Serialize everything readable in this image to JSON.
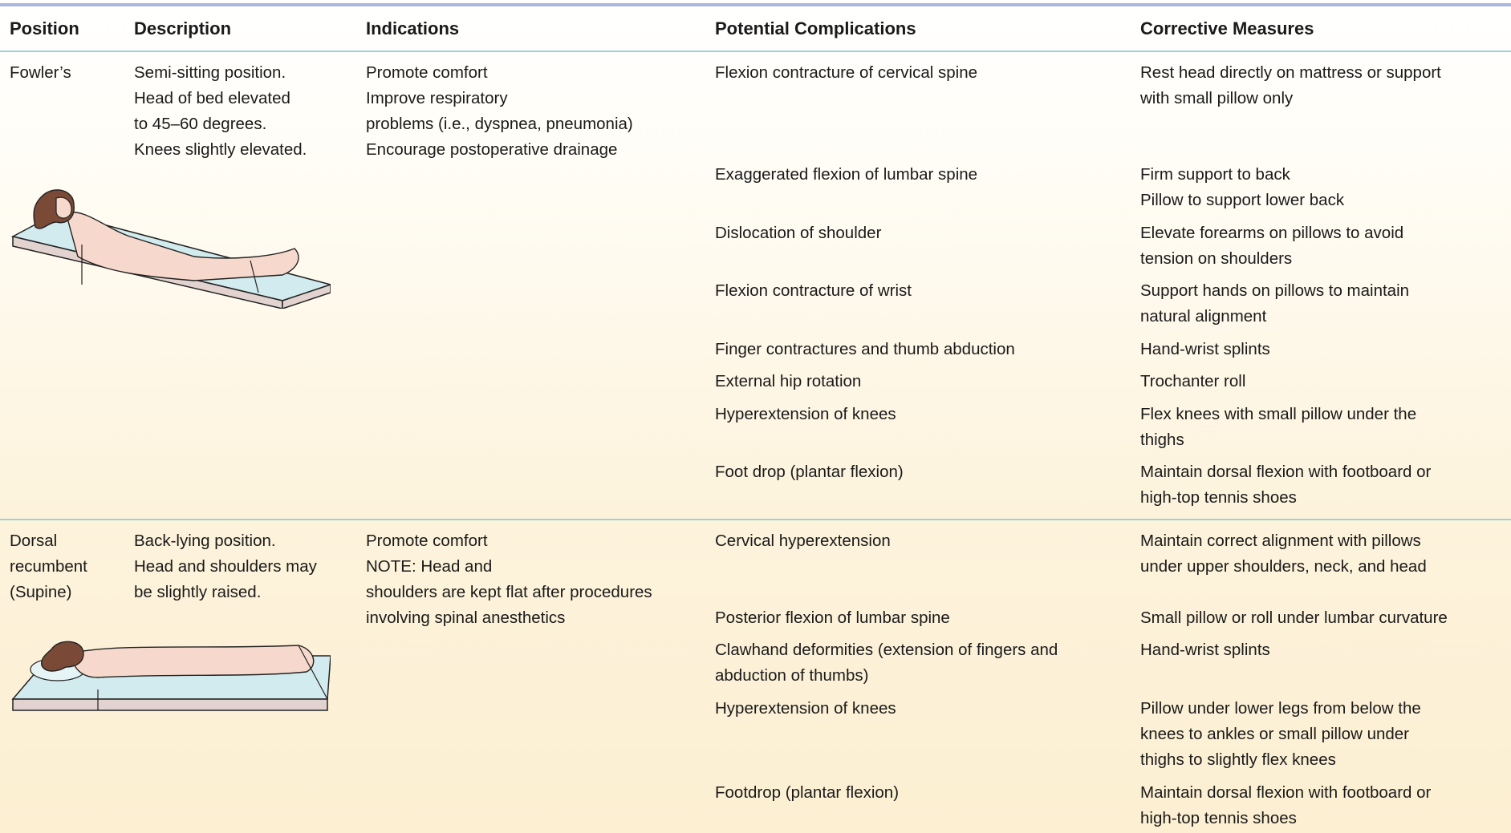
{
  "table": {
    "columns": [
      "Position",
      "Description",
      "Indications",
      "Potential Complications",
      "Corrective Measures"
    ],
    "rows": [
      {
        "position": [
          "Fowler’s"
        ],
        "description": [
          "Semi-sitting position.",
          "Head of bed elevated",
          "to 45–60 degrees.",
          "Knees slightly elevated."
        ],
        "indications": [
          "Promote comfort",
          "Improve respiratory",
          "problems (i.e., dyspnea, pneumonia)",
          "Encourage postoperative drainage"
        ],
        "complications": [
          {
            "problem": [
              "Flexion contracture of cervical spine"
            ],
            "measure": [
              "Rest head directly on mattress or support",
              "with small pillow only"
            ]
          },
          {
            "problem": [
              "Exaggerated flexion of lumbar spine"
            ],
            "measure": [
              "Firm support to back",
              "Pillow to support lower back"
            ]
          },
          {
            "problem": [
              "Dislocation of shoulder"
            ],
            "measure": [
              "Elevate forearms on pillows to avoid",
              "tension on shoulders"
            ]
          },
          {
            "problem": [
              "Flexion contracture of wrist"
            ],
            "measure": [
              "Support hands on pillows to maintain",
              "natural alignment"
            ]
          },
          {
            "problem": [
              "Finger contractures and thumb abduction"
            ],
            "measure": [
              "Hand-wrist splints"
            ]
          },
          {
            "problem": [
              "External hip rotation"
            ],
            "measure": [
              "Trochanter roll"
            ]
          },
          {
            "problem": [
              "Hyperextension of knees"
            ],
            "measure": [
              "Flex knees with small pillow under the",
              "thighs"
            ]
          },
          {
            "problem": [
              "Foot drop (plantar flexion)"
            ],
            "measure": [
              "Maintain dorsal flexion with footboard or",
              "high-top tennis shoes"
            ]
          }
        ]
      },
      {
        "position": [
          "Dorsal",
          "recumbent",
          "(Supine)"
        ],
        "description": [
          "Back-lying position.",
          "Head and shoulders may",
          "be slightly raised."
        ],
        "indications": [
          "Promote comfort",
          "NOTE: Head and",
          "shoulders are kept flat after procedures",
          "involving spinal anesthetics"
        ],
        "complications": [
          {
            "problem": [
              "Cervical hyperextension"
            ],
            "measure": [
              "Maintain correct alignment with pillows",
              "under upper shoulders, neck, and head"
            ]
          },
          {
            "problem": [
              "Posterior flexion of lumbar spine"
            ],
            "measure": [
              "Small pillow or roll under lumbar curvature"
            ]
          },
          {
            "problem": [
              "Clawhand deformities (extension of fingers and",
              "abduction of thumbs)"
            ],
            "measure": [
              "Hand-wrist splints"
            ]
          },
          {
            "problem": [
              "Hyperextension of knees"
            ],
            "measure": [
              "Pillow under lower legs from below the",
              "knees to ankles or small pillow under",
              "thighs to slightly flex knees"
            ]
          },
          {
            "problem": [
              "Footdrop (plantar flexion)"
            ],
            "measure": [
              "Maintain dorsal flexion with footboard or",
              "high-top tennis shoes"
            ]
          }
        ]
      }
    ]
  }
}
